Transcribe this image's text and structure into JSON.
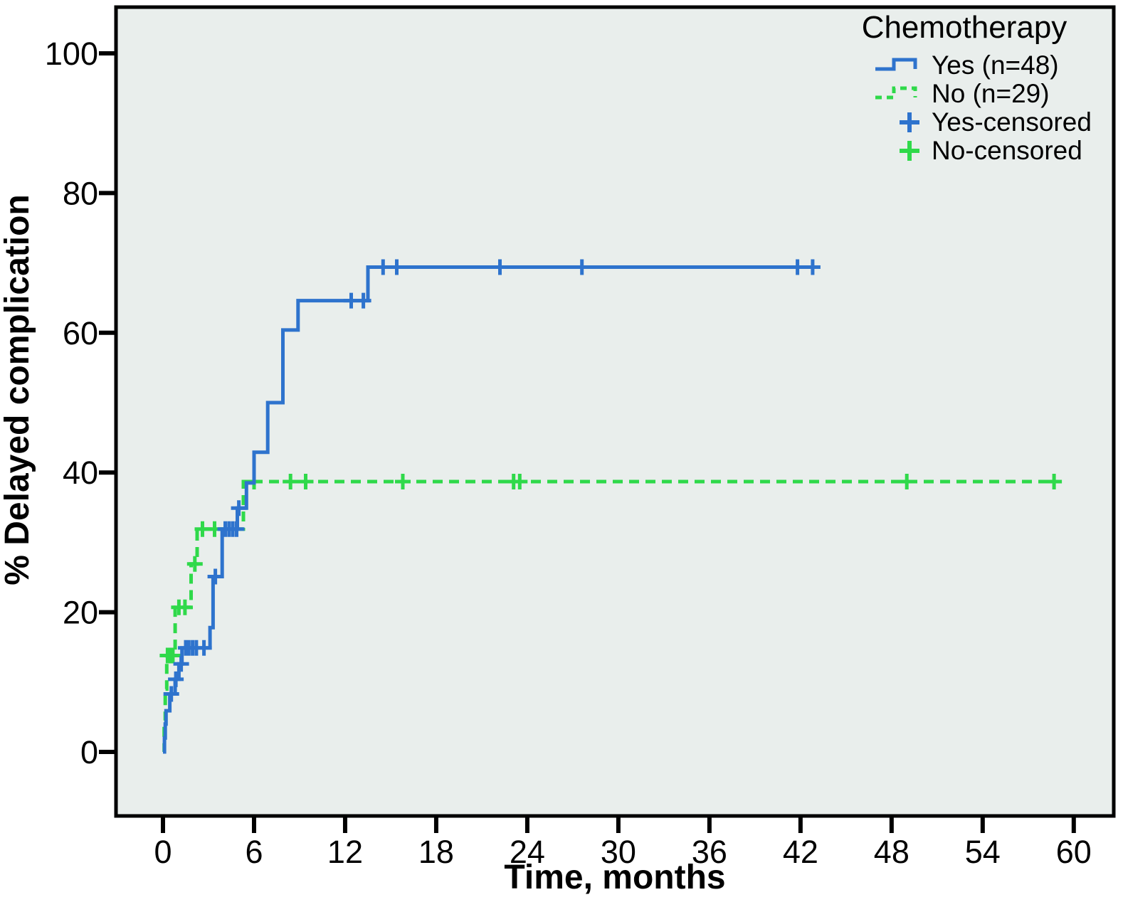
{
  "colors": {
    "background": "#ffffff",
    "plot_background": "#e9eeec",
    "axis": "#000000",
    "yes_blue": "#2e73cd",
    "no_green": "#2fd94a"
  },
  "chart_data": {
    "type": "line",
    "subtype": "kaplan-meier-step",
    "title": "",
    "xlabel": "Time, months",
    "ylabel": "% Delayed complication",
    "xticks": [
      0,
      6,
      12,
      18,
      24,
      30,
      36,
      42,
      48,
      54,
      60
    ],
    "yticks": [
      0,
      20,
      40,
      60,
      80,
      100
    ],
    "xlim": [
      -3.1,
      62.6
    ],
    "ylim": [
      -9,
      106.7
    ],
    "grid": false,
    "legend": {
      "title": "Chemotherapy",
      "position": "top-right",
      "entries": [
        {
          "label": "Yes (n=48)",
          "type": "line",
          "style": "solid",
          "color": "#2e73cd"
        },
        {
          "label": "No (n=29)",
          "type": "line",
          "style": "dashed",
          "color": "#2fd94a"
        },
        {
          "label": "Yes-censored",
          "type": "marker",
          "marker": "plus",
          "color": "#2e73cd"
        },
        {
          "label": "No-censored",
          "type": "marker",
          "marker": "plus",
          "color": "#2fd94a"
        }
      ]
    },
    "series": [
      {
        "name": "Yes (n=48)",
        "color": "#2e73cd",
        "line_style": "solid",
        "steps": [
          [
            0,
            0
          ],
          [
            0.1,
            2
          ],
          [
            0.15,
            4
          ],
          [
            0.2,
            5.9
          ],
          [
            0.45,
            8.3
          ],
          [
            0.8,
            10.4
          ],
          [
            1.05,
            12.6
          ],
          [
            1.25,
            14.9
          ],
          [
            3.1,
            17.8
          ],
          [
            3.3,
            25.1
          ],
          [
            3.9,
            31.9
          ],
          [
            4.9,
            34.9
          ],
          [
            5.5,
            38.5
          ],
          [
            6.0,
            42.9
          ],
          [
            6.9,
            50.0
          ],
          [
            7.9,
            60.4
          ],
          [
            8.9,
            64.6
          ],
          [
            13.5,
            69.4
          ]
        ],
        "end_time": 43.2,
        "censor_marks": [
          [
            0.55,
            8.3
          ],
          [
            0.85,
            10.4
          ],
          [
            1.2,
            12.6
          ],
          [
            1.5,
            14.9
          ],
          [
            1.7,
            14.9
          ],
          [
            1.95,
            14.9
          ],
          [
            2.2,
            14.9
          ],
          [
            2.7,
            14.9
          ],
          [
            3.45,
            25.1
          ],
          [
            4.1,
            31.9
          ],
          [
            4.35,
            31.9
          ],
          [
            4.6,
            31.9
          ],
          [
            4.85,
            31.9
          ],
          [
            5.0,
            34.9
          ],
          [
            12.4,
            64.6
          ],
          [
            13.2,
            64.6
          ],
          [
            14.5,
            69.4
          ],
          [
            15.4,
            69.4
          ],
          [
            22.2,
            69.4
          ],
          [
            27.6,
            69.4
          ],
          [
            41.8,
            69.4
          ],
          [
            42.8,
            69.4
          ]
        ]
      },
      {
        "name": "No (n=29)",
        "color": "#2fd94a",
        "line_style": "dashed",
        "steps": [
          [
            0,
            0
          ],
          [
            0.08,
            4.5
          ],
          [
            0.15,
            9.0
          ],
          [
            0.25,
            13.8
          ],
          [
            0.8,
            20.7
          ],
          [
            1.85,
            26.9
          ],
          [
            2.25,
            31.9
          ],
          [
            5.3,
            38.7
          ]
        ],
        "end_time": 59.2,
        "censor_marks": [
          [
            0.3,
            13.8
          ],
          [
            0.45,
            13.8
          ],
          [
            0.65,
            13.8
          ],
          [
            1.05,
            20.7
          ],
          [
            1.45,
            20.7
          ],
          [
            2.1,
            26.9
          ],
          [
            2.6,
            31.9
          ],
          [
            3.4,
            31.9
          ],
          [
            6.0,
            38.7
          ],
          [
            8.4,
            38.7
          ],
          [
            9.4,
            38.7
          ],
          [
            15.8,
            38.7
          ],
          [
            23.1,
            38.7
          ],
          [
            23.5,
            38.7
          ],
          [
            49.0,
            38.7
          ],
          [
            58.7,
            38.7
          ]
        ]
      }
    ]
  }
}
